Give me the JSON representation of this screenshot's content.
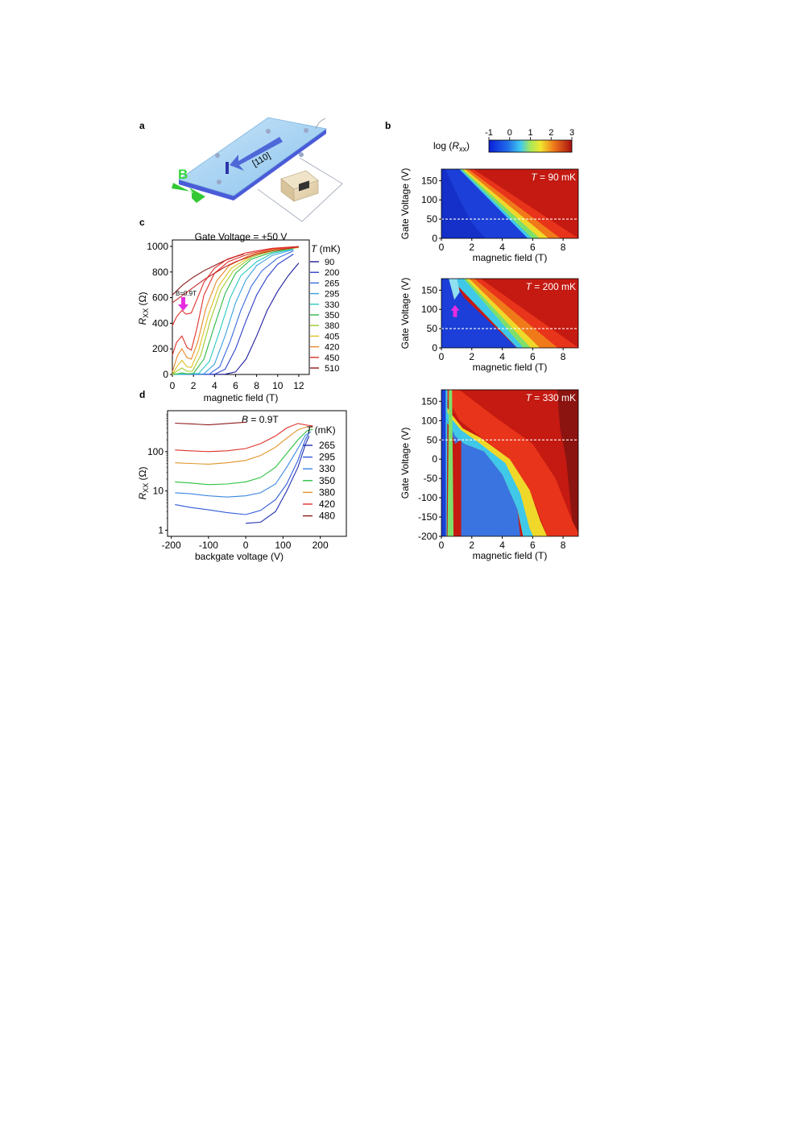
{
  "panel_letters": {
    "a": "a",
    "b": "b",
    "c": "c",
    "d": "d"
  },
  "device": {
    "b_label": "B",
    "i_label": "I",
    "direction_label": "[110]"
  },
  "colorbar": {
    "label_pre": "log (",
    "label_var": "R",
    "label_sub": "xx",
    "label_post": ")",
    "ticks": [
      "-1",
      "0",
      "1",
      "2",
      "3"
    ]
  },
  "chart_data": [
    {
      "id": "c",
      "type": "line",
      "title": "Gate Voltage = +50 V",
      "xlabel": "magnetic field (T)",
      "ylabel_var": "R",
      "ylabel_sub": "XX",
      "ylabel_unit": " (Ω)",
      "xlim": [
        0,
        13
      ],
      "ylim": [
        0,
        1050
      ],
      "xticks": [
        "0",
        "2",
        "4",
        "6",
        "8",
        "10",
        "12"
      ],
      "yticks": [
        "0",
        "200",
        "400",
        "600",
        "800",
        "1000"
      ],
      "legend_title_var": "T",
      "legend_title_unit": " (mK)",
      "annotation": "B=0.9T",
      "series": [
        {
          "name": "90",
          "color": "#1f1f9e",
          "x": [
            0,
            5,
            6,
            7,
            8,
            9,
            10,
            11,
            12
          ],
          "y": [
            0,
            2,
            20,
            120,
            300,
            500,
            650,
            770,
            870
          ]
        },
        {
          "name": "200",
          "color": "#2c3fc9",
          "x": [
            0,
            4,
            5,
            6,
            7,
            8,
            9,
            10,
            11.5
          ],
          "y": [
            0,
            2,
            40,
            200,
            420,
            620,
            760,
            860,
            940
          ]
        },
        {
          "name": "265",
          "color": "#3a6cdc",
          "x": [
            0,
            3.5,
            4.5,
            5.5,
            6.5,
            7.5,
            8.5,
            10,
            11.5
          ],
          "y": [
            0,
            3,
            60,
            260,
            500,
            690,
            810,
            910,
            965
          ]
        },
        {
          "name": "295",
          "color": "#3aa0e2",
          "x": [
            0,
            3,
            4,
            5,
            6,
            7,
            8,
            9.5,
            11.5
          ],
          "y": [
            0,
            5,
            80,
            300,
            560,
            740,
            850,
            930,
            975
          ]
        },
        {
          "name": "330",
          "color": "#2cc9c0",
          "x": [
            0,
            2.5,
            3.5,
            4.5,
            5.5,
            6.5,
            8,
            9.5,
            11.5
          ],
          "y": [
            0,
            8,
            100,
            340,
            600,
            770,
            880,
            945,
            980
          ]
        },
        {
          "name": "350",
          "color": "#2db84a",
          "x": [
            0,
            0.5,
            0.9,
            1.4,
            2,
            3,
            4,
            5,
            6,
            7.5,
            9.5,
            11.5
          ],
          "y": [
            0,
            5,
            12,
            5,
            8,
            120,
            380,
            630,
            790,
            900,
            955,
            985
          ]
        },
        {
          "name": "380",
          "color": "#9fcc2e",
          "x": [
            0,
            0.5,
            0.9,
            1.4,
            1.9,
            2.7,
            3.6,
            4.6,
            5.8,
            7.5,
            9.5,
            12
          ],
          "y": [
            0,
            30,
            50,
            25,
            25,
            150,
            420,
            660,
            810,
            915,
            965,
            990
          ]
        },
        {
          "name": "405",
          "color": "#e0c020",
          "x": [
            0,
            0.5,
            0.9,
            1.4,
            1.8,
            2.5,
            3.4,
            4.4,
            5.6,
            7.5,
            9.5,
            12
          ],
          "y": [
            0,
            70,
            110,
            60,
            55,
            190,
            460,
            690,
            830,
            925,
            970,
            993
          ]
        },
        {
          "name": "420",
          "color": "#e8882a",
          "x": [
            0,
            0.5,
            0.9,
            1.4,
            1.8,
            2.4,
            3.2,
            4.2,
            5.4,
            7.3,
            9.5,
            12
          ],
          "y": [
            20,
            150,
            200,
            130,
            120,
            250,
            520,
            730,
            850,
            930,
            975,
            995
          ]
        },
        {
          "name": "450",
          "color": "#e0302a",
          "x": [
            0,
            0.4,
            0.9,
            1.4,
            1.8,
            2.3,
            3,
            4,
            5.3,
            7.2,
            9.5,
            12
          ],
          "y": [
            150,
            250,
            300,
            210,
            190,
            350,
            620,
            790,
            880,
            940,
            980,
            997
          ]
        },
        {
          "name": "510",
          "color": "#8e1a1a",
          "x": [
            0,
            0.5,
            1,
            2,
            3,
            4,
            5,
            6,
            6.8
          ],
          "y": [
            620,
            660,
            700,
            760,
            810,
            850,
            890,
            920,
            940
          ]
        },
        {
          "name": "",
          "color": "#e0302a",
          "x": [
            0,
            0.4,
            0.9,
            1.3,
            1.8,
            2.4,
            3,
            4,
            5.2,
            7,
            9.5,
            12
          ],
          "y": [
            380,
            450,
            500,
            470,
            480,
            600,
            720,
            830,
            900,
            950,
            985,
            1000
          ]
        },
        {
          "name": "",
          "color": "#c0282a",
          "x": [
            0,
            1,
            2,
            3,
            4,
            5,
            6,
            7,
            8,
            9.5,
            12
          ],
          "y": [
            560,
            620,
            680,
            740,
            790,
            840,
            880,
            910,
            940,
            965,
            995
          ]
        }
      ]
    },
    {
      "id": "d",
      "type": "line",
      "title_var": "B",
      "title_rest": " = 0.9T",
      "xlabel": "backgate voltage (V)",
      "ylabel_var": "R",
      "ylabel_sub": "XX",
      "ylabel_unit": " (Ω)",
      "xlim": [
        -210,
        270
      ],
      "ylim": [
        0.7,
        1100
      ],
      "yscale": "log",
      "xticks": [
        -200,
        -100,
        0,
        100,
        200
      ],
      "xticklabels": [
        "-200",
        "-100",
        "0",
        "100",
        "200"
      ],
      "yticks": [
        1,
        10,
        100
      ],
      "yticklabels": [
        "1",
        "10",
        "100"
      ],
      "legend_title_var": "T",
      "legend_title_unit": " (mK)",
      "series": [
        {
          "name": "265",
          "color": "#1f2fb0",
          "x": [
            0,
            40,
            80,
            110,
            140,
            160,
            170
          ],
          "y": [
            1.5,
            1.6,
            3,
            10,
            40,
            150,
            250
          ]
        },
        {
          "name": "295",
          "color": "#2f5ad8",
          "x": [
            -190,
            -150,
            -100,
            -50,
            0,
            40,
            80,
            110,
            140,
            160,
            170
          ],
          "y": [
            4.5,
            3.8,
            3.3,
            2.8,
            2.5,
            3.2,
            6,
            15,
            60,
            200,
            300
          ]
        },
        {
          "name": "330",
          "color": "#3a86e0",
          "x": [
            -190,
            -150,
            -100,
            -50,
            0,
            40,
            80,
            110,
            140,
            160,
            175
          ],
          "y": [
            9,
            8.5,
            7.5,
            7,
            7.5,
            9,
            15,
            40,
            120,
            260,
            320
          ]
        },
        {
          "name": "350",
          "color": "#2cc040",
          "x": [
            -190,
            -150,
            -100,
            -50,
            0,
            40,
            80,
            110,
            140,
            165,
            180
          ],
          "y": [
            17,
            16,
            14.5,
            15,
            17,
            22,
            40,
            90,
            200,
            340,
            370
          ]
        },
        {
          "name": "380",
          "color": "#e0942a",
          "x": [
            -190,
            -150,
            -100,
            -50,
            0,
            40,
            80,
            110,
            140,
            165,
            180
          ],
          "y": [
            52,
            50,
            48,
            52,
            60,
            80,
            130,
            220,
            360,
            430,
            420
          ]
        },
        {
          "name": "420",
          "color": "#e0302a",
          "x": [
            -190,
            -150,
            -100,
            -50,
            0,
            40,
            80,
            110,
            140,
            165,
            180
          ],
          "y": [
            110,
            105,
            100,
            105,
            120,
            160,
            250,
            400,
            520,
            470,
            450
          ]
        },
        {
          "name": "480",
          "color": "#8e1a1a",
          "x": [
            -190,
            -150,
            -100,
            -50,
            0
          ],
          "y": [
            530,
            510,
            480,
            520,
            560
          ]
        }
      ]
    },
    {
      "id": "b1",
      "type": "heatmap",
      "label_var": "T",
      "label_rest": " = 90 mK",
      "xlabel": "magnetic field (T)",
      "ylabel": "Gate Voltage (V)",
      "xlim": [
        0,
        9
      ],
      "ylim": [
        0,
        180
      ],
      "dashed_line_y": 50,
      "xticks": [
        0,
        2,
        4,
        6,
        8
      ],
      "xticklabels": [
        "0",
        "2",
        "4",
        "6",
        "8"
      ],
      "yticks": [
        0,
        50,
        100,
        150
      ],
      "yticklabels": [
        "0",
        "50",
        "100",
        "150"
      ]
    },
    {
      "id": "b2",
      "type": "heatmap",
      "label_var": "T",
      "label_rest": " = 200 mK",
      "xlabel": "magnetic field (T)",
      "ylabel": "Gate Voltage (V)",
      "xlim": [
        0,
        9
      ],
      "ylim": [
        0,
        180
      ],
      "dashed_line_y": 50,
      "xticks": [
        0,
        2,
        4,
        6,
        8
      ],
      "xticklabels": [
        "0",
        "2",
        "4",
        "6",
        "8"
      ],
      "yticks": [
        0,
        50,
        100,
        150
      ],
      "yticklabels": [
        "0",
        "50",
        "100",
        "150"
      ]
    },
    {
      "id": "b3",
      "type": "heatmap",
      "label_var": "T",
      "label_rest": " = 330 mK",
      "xlabel": "magnetic field (T)",
      "ylabel": "Gate Voltage (V)",
      "xlim": [
        0,
        9
      ],
      "ylim": [
        -200,
        180
      ],
      "dashed_line_y": 50,
      "xticks": [
        0,
        2,
        4,
        6,
        8
      ],
      "xticklabels": [
        "0",
        "2",
        "4",
        "6",
        "8"
      ],
      "yticks": [
        -200,
        -150,
        -100,
        -50,
        0,
        50,
        100,
        150
      ],
      "yticklabels": [
        "-200",
        "-150",
        "-100",
        "-50",
        "0",
        "50",
        "100",
        "150"
      ]
    }
  ]
}
